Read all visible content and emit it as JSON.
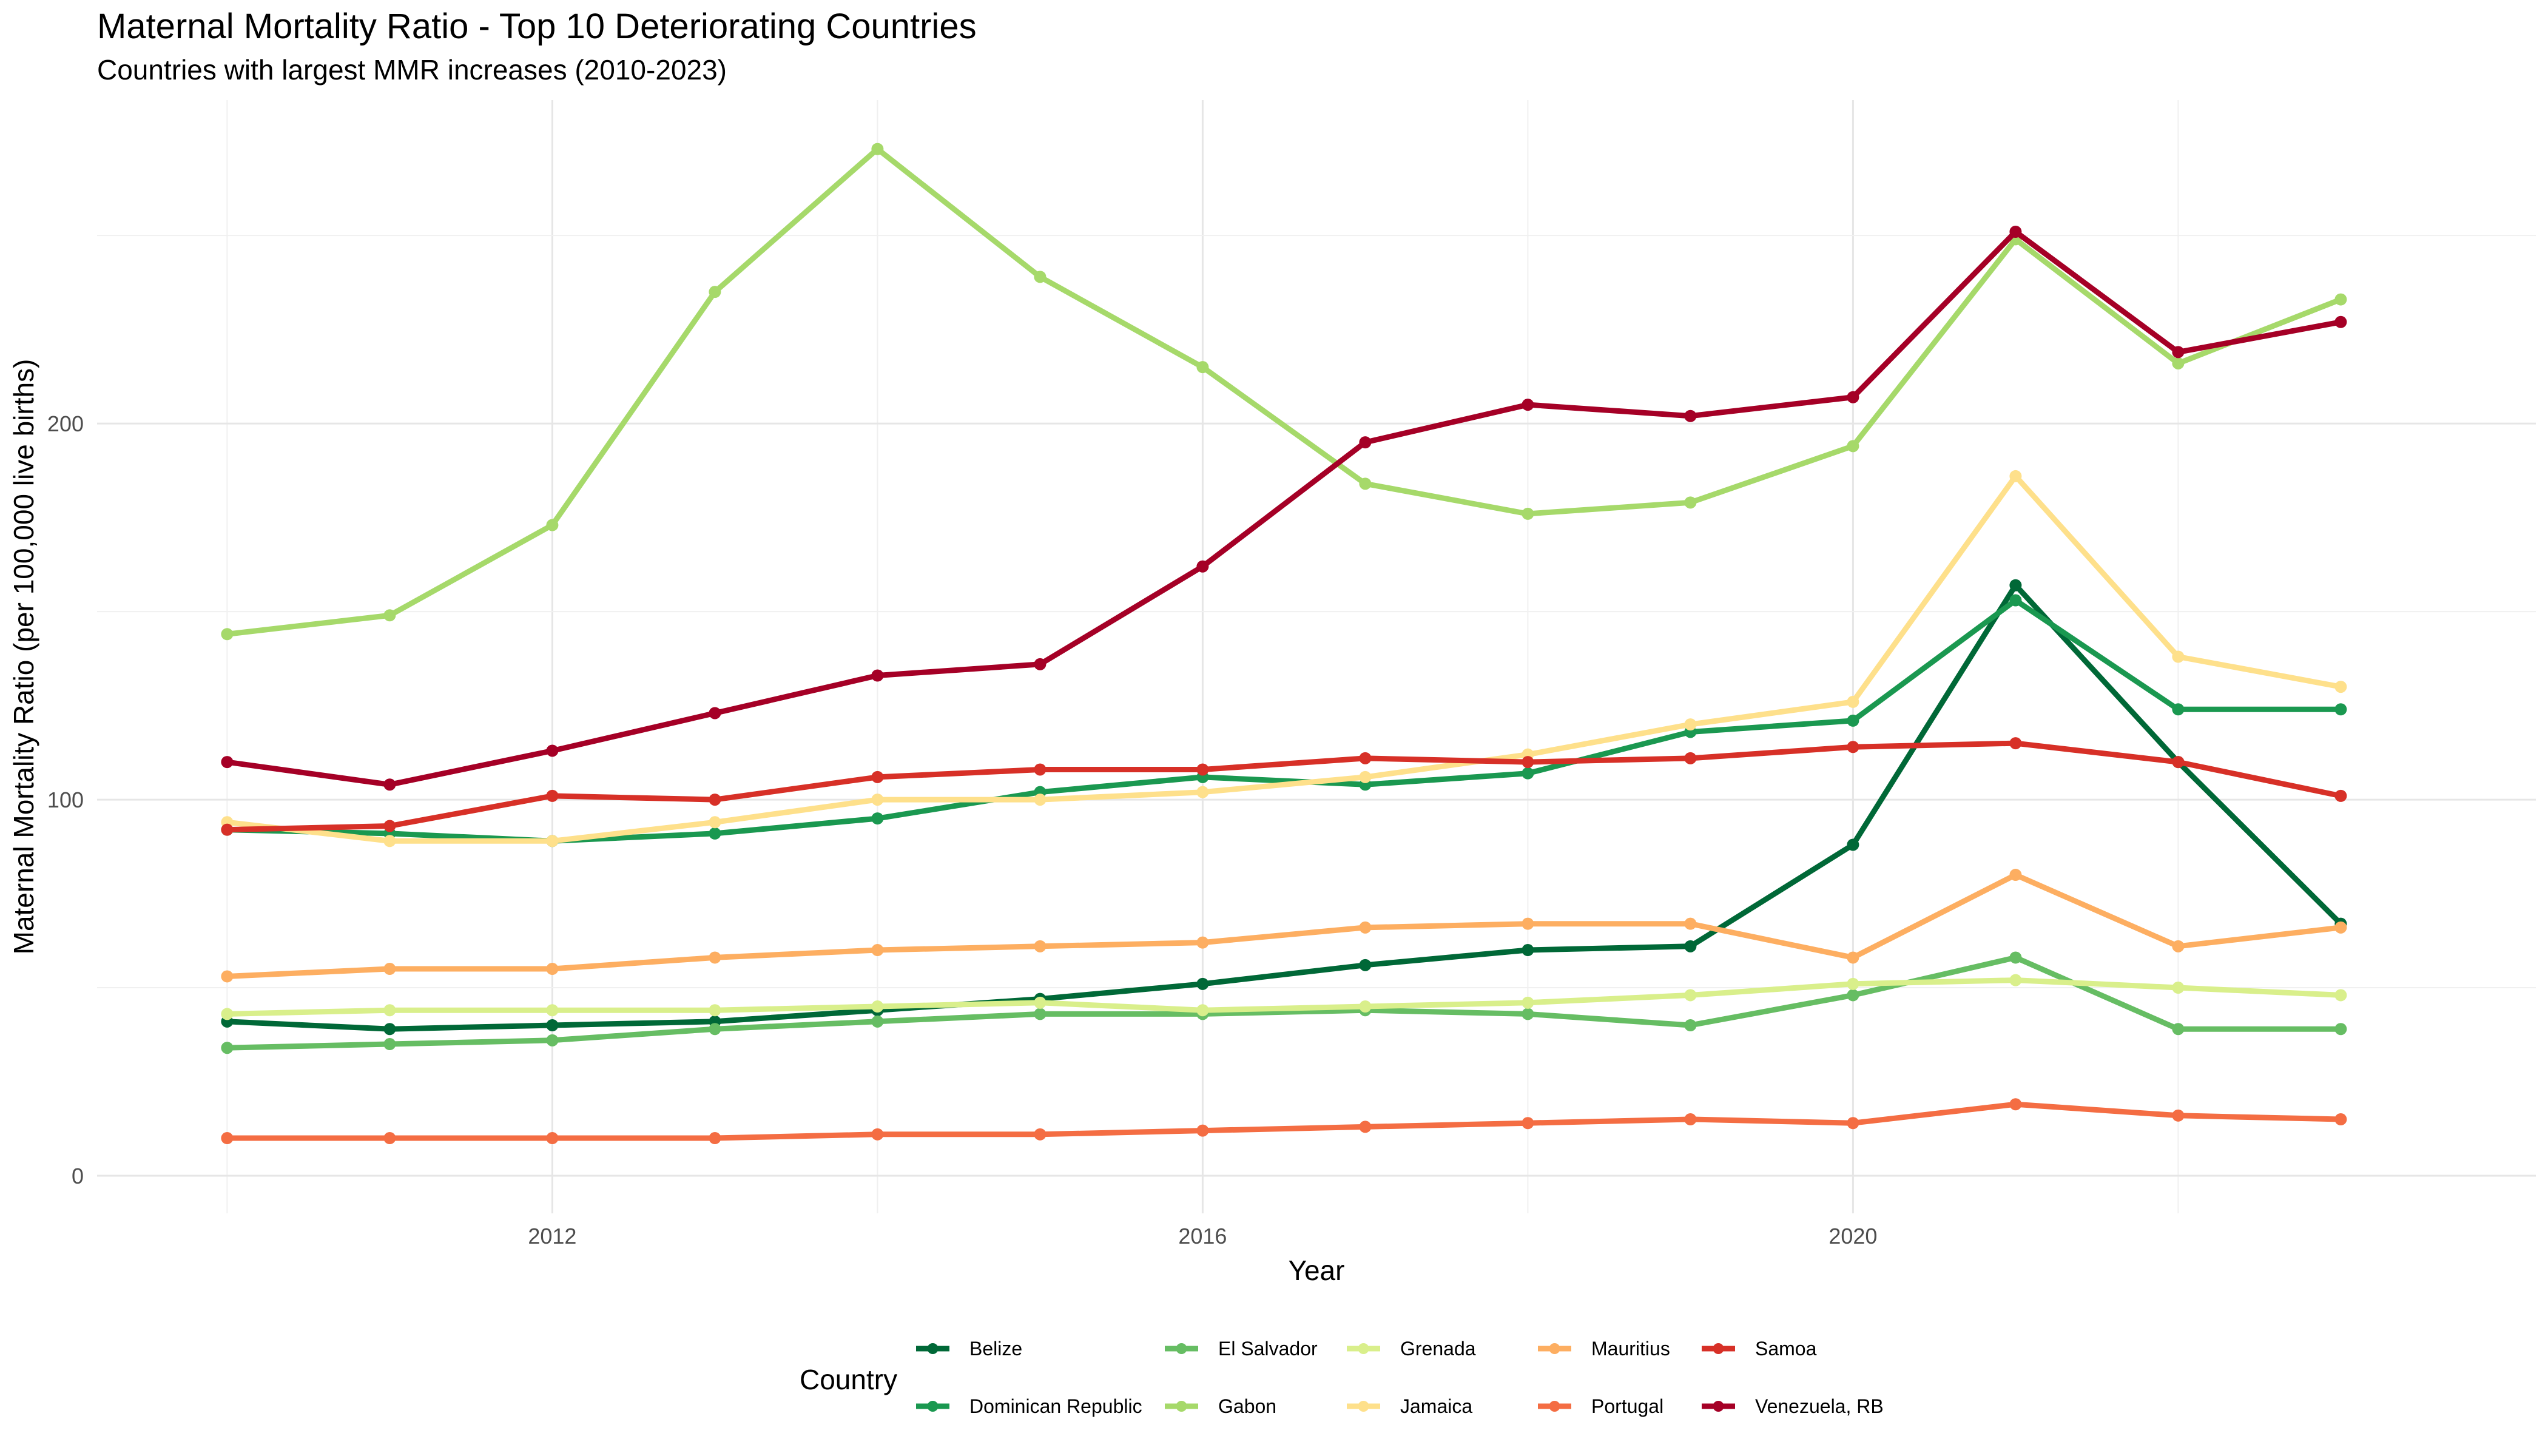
{
  "chart_data": {
    "type": "line",
    "title": "Maternal Mortality Ratio - Top 10 Deteriorating Countries",
    "subtitle": "Countries with largest MMR increases (2010-2023)",
    "xlabel": "Year",
    "ylabel": "Maternal Mortality Ratio (per 100,000 live births)",
    "legend_title": "Country",
    "legend_position": "bottom",
    "grid": true,
    "xlim": [
      2009.2,
      2024.2
    ],
    "ylim": [
      -10,
      286
    ],
    "x_ticks": [
      2012,
      2016,
      2020
    ],
    "y_ticks": [
      0,
      100,
      200
    ],
    "x": [
      2010,
      2011,
      2012,
      2013,
      2014,
      2015,
      2016,
      2017,
      2018,
      2019,
      2020,
      2021,
      2022,
      2023
    ],
    "series": [
      {
        "name": "Belize",
        "color": "#006837",
        "values": [
          41,
          39,
          40,
          41,
          44,
          47,
          51,
          56,
          60,
          61,
          88,
          157,
          110,
          67
        ]
      },
      {
        "name": "Dominican Republic",
        "color": "#1a9850",
        "values": [
          92,
          91,
          89,
          91,
          95,
          102,
          106,
          104,
          107,
          118,
          121,
          153,
          124,
          124
        ]
      },
      {
        "name": "El Salvador",
        "color": "#66bd63",
        "values": [
          34,
          35,
          36,
          39,
          41,
          43,
          43,
          44,
          43,
          40,
          48,
          58,
          39,
          39
        ]
      },
      {
        "name": "Gabon",
        "color": "#a6d96a",
        "values": [
          144,
          149,
          173,
          235,
          273,
          239,
          215,
          184,
          176,
          179,
          194,
          249,
          216,
          233
        ]
      },
      {
        "name": "Grenada",
        "color": "#d9ef8b",
        "values": [
          43,
          44,
          44,
          44,
          45,
          46,
          44,
          45,
          46,
          48,
          51,
          52,
          50,
          48
        ]
      },
      {
        "name": "Jamaica",
        "color": "#fee08b",
        "values": [
          94,
          89,
          89,
          94,
          100,
          100,
          102,
          106,
          112,
          120,
          126,
          186,
          138,
          130
        ]
      },
      {
        "name": "Mauritius",
        "color": "#fdae61",
        "values": [
          53,
          55,
          55,
          58,
          60,
          61,
          62,
          66,
          67,
          67,
          58,
          80,
          61,
          66
        ]
      },
      {
        "name": "Portugal",
        "color": "#f46d43",
        "values": [
          10,
          10,
          10,
          10,
          11,
          11,
          12,
          13,
          14,
          15,
          14,
          19,
          16,
          15
        ]
      },
      {
        "name": "Samoa",
        "color": "#d73027",
        "values": [
          92,
          93,
          101,
          100,
          106,
          108,
          108,
          111,
          110,
          111,
          114,
          115,
          110,
          101
        ]
      },
      {
        "name": "Venezuela, RB",
        "color": "#a50026",
        "values": [
          110,
          104,
          113,
          123,
          133,
          136,
          162,
          195,
          205,
          202,
          207,
          251,
          219,
          227
        ]
      }
    ]
  }
}
